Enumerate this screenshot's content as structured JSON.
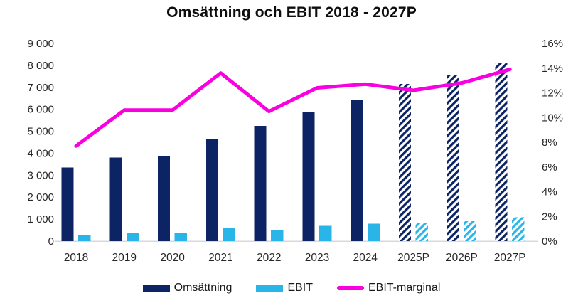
{
  "title": "Omsättning och EBIT 2018 - 2027P",
  "colors": {
    "omsattning": "#0d2464",
    "ebit": "#29b5e8",
    "margin_line": "#fa00e0",
    "axis_line": "#d9d9d9",
    "tick_text": "#262626"
  },
  "chart_data": {
    "type": "bar",
    "subtype": "combo-bar-line",
    "title": "Omsättning och EBIT 2018 - 2027P",
    "categories": [
      "2018",
      "2019",
      "2020",
      "2021",
      "2022",
      "2023",
      "2024",
      "2025P",
      "2026P",
      "2027P"
    ],
    "forecast_categories": [
      "2025P",
      "2026P",
      "2027P"
    ],
    "forecast_style": "diagonal-hatch",
    "series": [
      {
        "name": "Omsättning",
        "type": "bar",
        "axis": "left",
        "values": [
          3350,
          3800,
          3850,
          4650,
          5250,
          5900,
          6450,
          7150,
          7550,
          8100
        ]
      },
      {
        "name": "EBIT",
        "type": "bar",
        "axis": "left",
        "values": [
          260,
          380,
          380,
          580,
          520,
          700,
          800,
          830,
          900,
          1090
        ]
      },
      {
        "name": "EBIT-marginal",
        "type": "line",
        "axis": "right",
        "values": [
          7.7,
          10.6,
          10.6,
          13.6,
          10.5,
          12.4,
          12.7,
          12.2,
          12.8,
          13.9
        ]
      }
    ],
    "left_axis": {
      "min": 0,
      "max": 9000,
      "step": 1000,
      "tick_labels": [
        "0",
        "1 000",
        "2 000",
        "3 000",
        "4 000",
        "5 000",
        "6 000",
        "7 000",
        "8 000",
        "9 000"
      ]
    },
    "right_axis": {
      "min": 0,
      "max": 16,
      "step": 2,
      "tick_labels": [
        "0%",
        "2%",
        "4%",
        "6%",
        "8%",
        "10%",
        "12%",
        "14%",
        "16%"
      ]
    },
    "grid": "off",
    "legend_position": "bottom"
  }
}
